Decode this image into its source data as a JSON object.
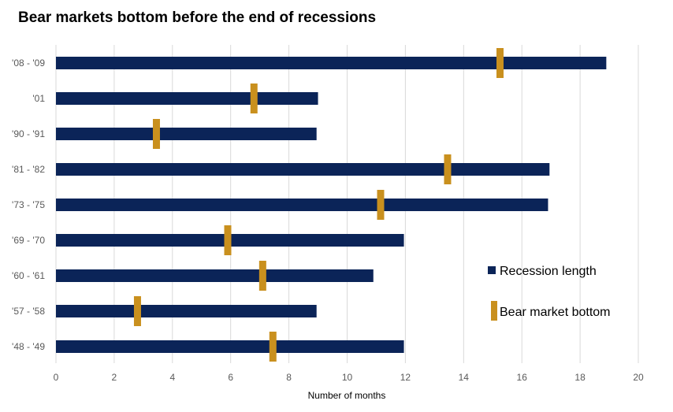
{
  "chart_data": {
    "type": "bar",
    "orientation": "horizontal",
    "title": "Bear markets bottom before the end of recessions",
    "xlabel": "Number of months",
    "ylabel": "",
    "xlim": [
      0,
      20
    ],
    "xticks": [
      0,
      2,
      4,
      6,
      8,
      10,
      12,
      14,
      16,
      18,
      20
    ],
    "grid": "vertical",
    "legend_position": "right",
    "categories": [
      "'08 - '09",
      "'01",
      "'90 - '91",
      "'81 - '82",
      "'73 - '75",
      "'69 - '70",
      "'60 - '61",
      "'57 - '58",
      "'48 - '49"
    ],
    "series": [
      {
        "name": "Recession length",
        "kind": "bar",
        "color": "#0b2458",
        "values": [
          18.9,
          9.0,
          8.95,
          16.95,
          16.9,
          11.95,
          10.9,
          8.95,
          11.95
        ]
      },
      {
        "name": "Bear market bottom",
        "kind": "marker",
        "color": "#c9901e",
        "values": [
          15.25,
          6.8,
          3.45,
          13.45,
          11.15,
          5.9,
          7.1,
          2.8,
          7.45
        ]
      }
    ]
  }
}
